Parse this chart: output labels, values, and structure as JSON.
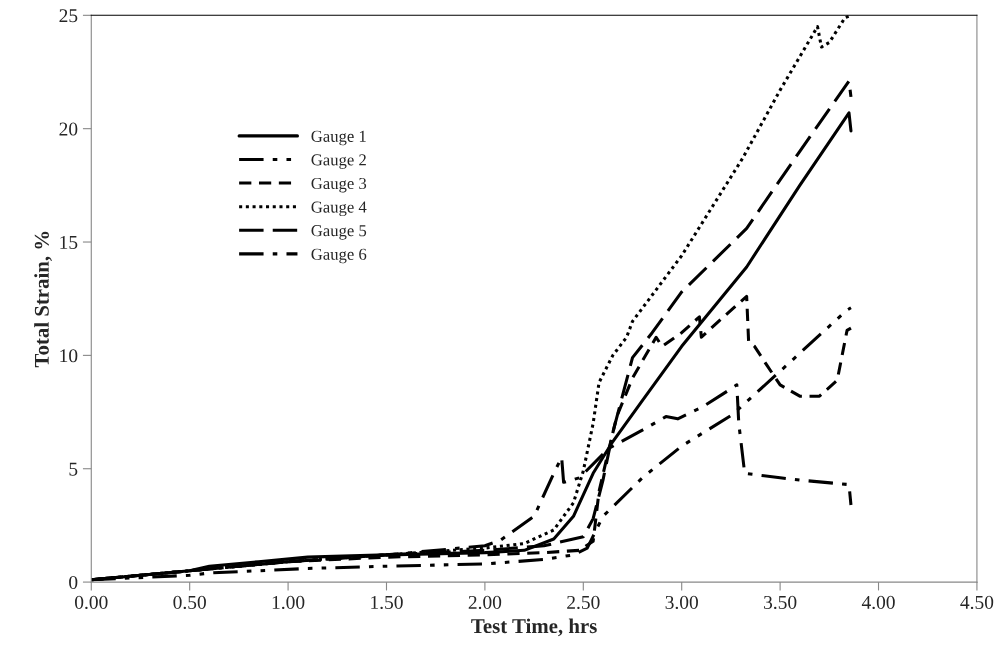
{
  "chart_data": {
    "type": "line",
    "xlabel": "Test Time, hrs",
    "ylabel": "Total Strain, %",
    "xlim": [
      0,
      4.5
    ],
    "ylim": [
      0,
      25
    ],
    "xticks": [
      {
        "value": 0,
        "label": "0.00"
      },
      {
        "value": 0.5,
        "label": "0.50"
      },
      {
        "value": 1.0,
        "label": "1.00"
      },
      {
        "value": 1.5,
        "label": "1.50"
      },
      {
        "value": 2.0,
        "label": "2.00"
      },
      {
        "value": 2.5,
        "label": "2.50"
      },
      {
        "value": 3.0,
        "label": "3.00"
      },
      {
        "value": 3.5,
        "label": "3.50"
      },
      {
        "value": 4.0,
        "label": "4.00"
      },
      {
        "value": 4.5,
        "label": "4.50"
      }
    ],
    "yticks": [
      0,
      5,
      10,
      15,
      20,
      25
    ],
    "grid": false,
    "legend": "left",
    "marker": "none",
    "series": [
      {
        "name": "Gauge 1",
        "color": "#000000",
        "line_style": "solid",
        "x": [
          0,
          0.25,
          0.5,
          0.6,
          0.85,
          1.1,
          1.5,
          2.0,
          2.2,
          2.35,
          2.45,
          2.55,
          2.65,
          2.8,
          3.0,
          3.33,
          3.6,
          3.85,
          3.86
        ],
        "values": [
          0.1,
          0.3,
          0.5,
          0.7,
          0.9,
          1.1,
          1.2,
          1.3,
          1.4,
          1.9,
          2.9,
          4.8,
          6.2,
          8.0,
          10.4,
          13.9,
          17.5,
          20.7,
          19.9
        ]
      },
      {
        "name": "Gauge 2",
        "color": "#000000",
        "line_style": "dashdotdot",
        "x": [
          0,
          0.5,
          0.6,
          1.1,
          1.5,
          2.0,
          2.3,
          2.45,
          2.52,
          2.6,
          2.8,
          3.0,
          3.26,
          3.5,
          3.84,
          3.86
        ],
        "values": [
          0.1,
          0.3,
          0.4,
          0.6,
          0.7,
          0.8,
          1.0,
          1.2,
          1.5,
          2.9,
          4.6,
          6.0,
          7.4,
          9.3,
          12.0,
          12.1
        ]
      },
      {
        "name": "Gauge 3",
        "color": "#000000",
        "line_style": "dashed",
        "x": [
          0,
          0.5,
          1.0,
          1.5,
          2.0,
          2.3,
          2.48,
          2.55,
          2.58,
          2.62,
          2.67,
          2.75,
          2.87,
          2.9,
          3.0,
          3.09,
          3.1,
          3.2,
          3.33,
          3.34,
          3.37,
          3.43,
          3.5,
          3.6,
          3.7,
          3.79,
          3.84,
          3.86
        ],
        "values": [
          0.1,
          0.5,
          0.9,
          1.1,
          1.2,
          1.3,
          1.4,
          1.8,
          4.0,
          5.5,
          7.3,
          9.0,
          10.8,
          10.4,
          11.0,
          11.7,
          10.8,
          11.6,
          12.6,
          10.6,
          10.4,
          9.6,
          8.7,
          8.2,
          8.2,
          8.9,
          11.1,
          11.2
        ]
      },
      {
        "name": "Gauge 4",
        "color": "#000000",
        "line_style": "dotted",
        "x": [
          0,
          0.5,
          1.0,
          1.5,
          2.0,
          2.2,
          2.35,
          2.45,
          2.5,
          2.55,
          2.58,
          2.65,
          2.72,
          2.75,
          3.0,
          3.31,
          3.5,
          3.69,
          3.71,
          3.75,
          3.83,
          3.86
        ],
        "values": [
          0.1,
          0.5,
          0.9,
          1.2,
          1.5,
          1.7,
          2.3,
          3.5,
          4.9,
          7.0,
          8.8,
          10.0,
          10.8,
          11.5,
          14.4,
          18.7,
          21.7,
          24.5,
          23.6,
          23.8,
          24.9,
          25.0
        ]
      },
      {
        "name": "Gauge 5",
        "color": "#000000",
        "line_style": "longdash",
        "x": [
          0,
          0.5,
          1.0,
          1.5,
          2.0,
          2.3,
          2.5,
          2.55,
          2.6,
          2.65,
          2.75,
          2.85,
          3.0,
          3.33,
          3.6,
          3.85,
          3.86
        ],
        "values": [
          0.1,
          0.5,
          0.9,
          1.2,
          1.4,
          1.6,
          2.0,
          2.8,
          4.5,
          6.6,
          9.9,
          11.0,
          12.8,
          15.6,
          19.0,
          22.1,
          21.4
        ]
      },
      {
        "name": "Gauge 6",
        "color": "#000000",
        "line_style": "dashdot",
        "x": [
          0,
          0.5,
          1.0,
          1.5,
          2.0,
          2.08,
          2.25,
          2.35,
          2.39,
          2.4,
          2.48,
          2.63,
          2.8,
          2.92,
          2.98,
          3.1,
          3.21,
          3.28,
          3.29,
          3.32,
          3.5,
          3.6,
          3.85,
          3.86
        ],
        "values": [
          0.1,
          0.5,
          0.9,
          1.2,
          1.6,
          1.85,
          2.9,
          4.8,
          5.5,
          4.4,
          4.6,
          5.9,
          6.7,
          7.3,
          7.2,
          7.7,
          8.3,
          8.7,
          7.0,
          4.8,
          4.6,
          4.5,
          4.3,
          3.4
        ]
      }
    ]
  }
}
